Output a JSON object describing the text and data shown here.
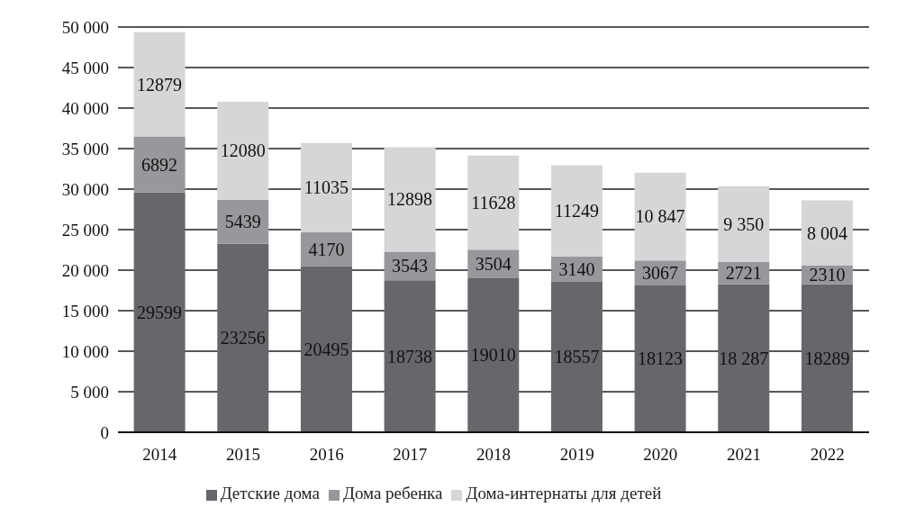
{
  "chart_data": {
    "type": "bar",
    "stacked": true,
    "categories": [
      "2014",
      "2015",
      "2016",
      "2017",
      "2018",
      "2019",
      "2020",
      "2021",
      "2022"
    ],
    "series": [
      {
        "name": "Детские дома",
        "color": "#67666b",
        "values": [
          29599,
          23256,
          20495,
          18738,
          19010,
          18557,
          18123,
          18287,
          18289
        ],
        "value_labels": [
          "29599",
          "23256",
          "20495",
          "18738",
          "19010",
          "18557",
          "18123",
          "18 287",
          "18289"
        ]
      },
      {
        "name": "Дома ребенка",
        "color": "#98979b",
        "values": [
          6892,
          5439,
          4170,
          3543,
          3504,
          3140,
          3067,
          2721,
          2310
        ],
        "value_labels": [
          "6892",
          "5439",
          "4170",
          "3543",
          "3504",
          "3140",
          "3067",
          "2721",
          "2310"
        ]
      },
      {
        "name": "Дома-интернаты для детей",
        "color": "#d5d6d8",
        "values": [
          12879,
          12080,
          11035,
          12898,
          11628,
          11249,
          10847,
          9350,
          8004
        ],
        "value_labels": [
          "12879",
          "12080",
          "11035",
          "12898",
          "11628",
          "11249",
          "10 847",
          "9 350",
          "8 004"
        ]
      }
    ],
    "ylim": [
      0,
      50000
    ],
    "yticks": [
      0,
      {
        "value": 5000,
        "label": "5 000"
      },
      {
        "value": 10000,
        "label": "10 000"
      },
      {
        "value": 15000,
        "label": "15 000"
      },
      {
        "value": 20000,
        "label": "20 000"
      },
      {
        "value": 25000,
        "label": "25 000"
      },
      {
        "value": 30000,
        "label": "30 000"
      },
      {
        "value": 35000,
        "label": "35 000"
      },
      {
        "value": 40000,
        "label": "40 000"
      },
      {
        "value": 45000,
        "label": "45 000"
      },
      {
        "value": 50000,
        "label": "50 000"
      }
    ],
    "grid": "y",
    "legend": "bottom"
  }
}
